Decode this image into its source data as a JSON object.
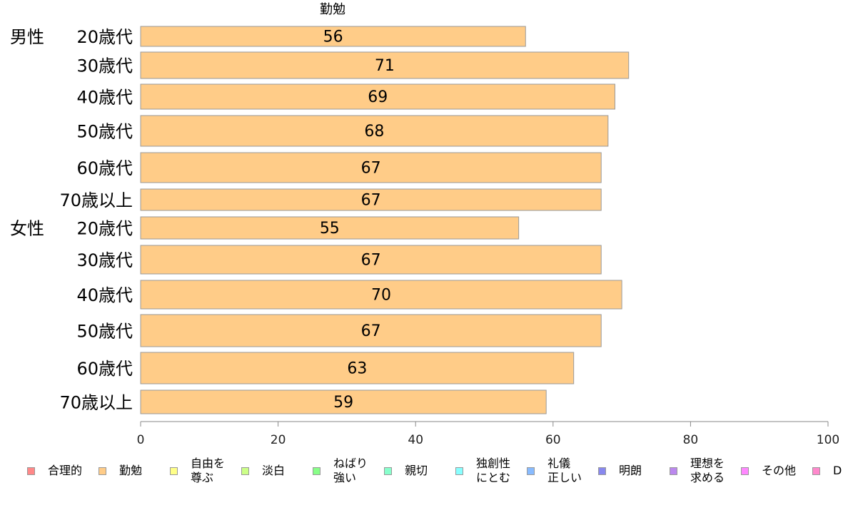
{
  "chart_data": {
    "type": "bar",
    "orientation": "horizontal",
    "title": "勤勉",
    "xlim": [
      0,
      100
    ],
    "xticks": [
      "0",
      "20",
      "40",
      "60",
      "80",
      "100"
    ],
    "groups": [
      {
        "label": "男性",
        "categories": [
          "20歳代",
          "30歳代",
          "40歳代",
          "50歳代",
          "60歳代",
          "70歳以上"
        ]
      },
      {
        "label": "女性",
        "categories": [
          "20歳代",
          "30歳代",
          "40歳代",
          "50歳代",
          "60歳代",
          "70歳以上"
        ]
      }
    ],
    "categories": [
      "20歳代",
      "30歳代",
      "40歳代",
      "50歳代",
      "60歳代",
      "70歳以上",
      "20歳代",
      "30歳代",
      "40歳代",
      "50歳代",
      "60歳代",
      "70歳以上"
    ],
    "values": [
      56,
      71,
      69,
      68,
      67,
      67,
      55,
      67,
      70,
      67,
      63,
      59
    ],
    "bar_color": "#FFCC88",
    "legend": [
      {
        "label": "合理的",
        "color": "#FF8888"
      },
      {
        "label": "勤勉",
        "color": "#FFCC88"
      },
      {
        "label": "自由を\n尊ぶ",
        "color": "#FFFF88"
      },
      {
        "label": "淡白",
        "color": "#CCFF88"
      },
      {
        "label": "ねばり\n強い",
        "color": "#88FF88"
      },
      {
        "label": "親切",
        "color": "#88FFCC"
      },
      {
        "label": "独創性\nにとむ",
        "color": "#88FFFF"
      },
      {
        "label": "礼儀\n正しい",
        "color": "#88BBFF"
      },
      {
        "label": "明朗",
        "color": "#8888EE"
      },
      {
        "label": "理想を\n求める",
        "color": "#BB88EE"
      },
      {
        "label": "その他",
        "color": "#FF88FF"
      },
      {
        "label": "D",
        "color": "#FF88CC"
      }
    ],
    "legend_position": "bottom",
    "grid": false
  }
}
